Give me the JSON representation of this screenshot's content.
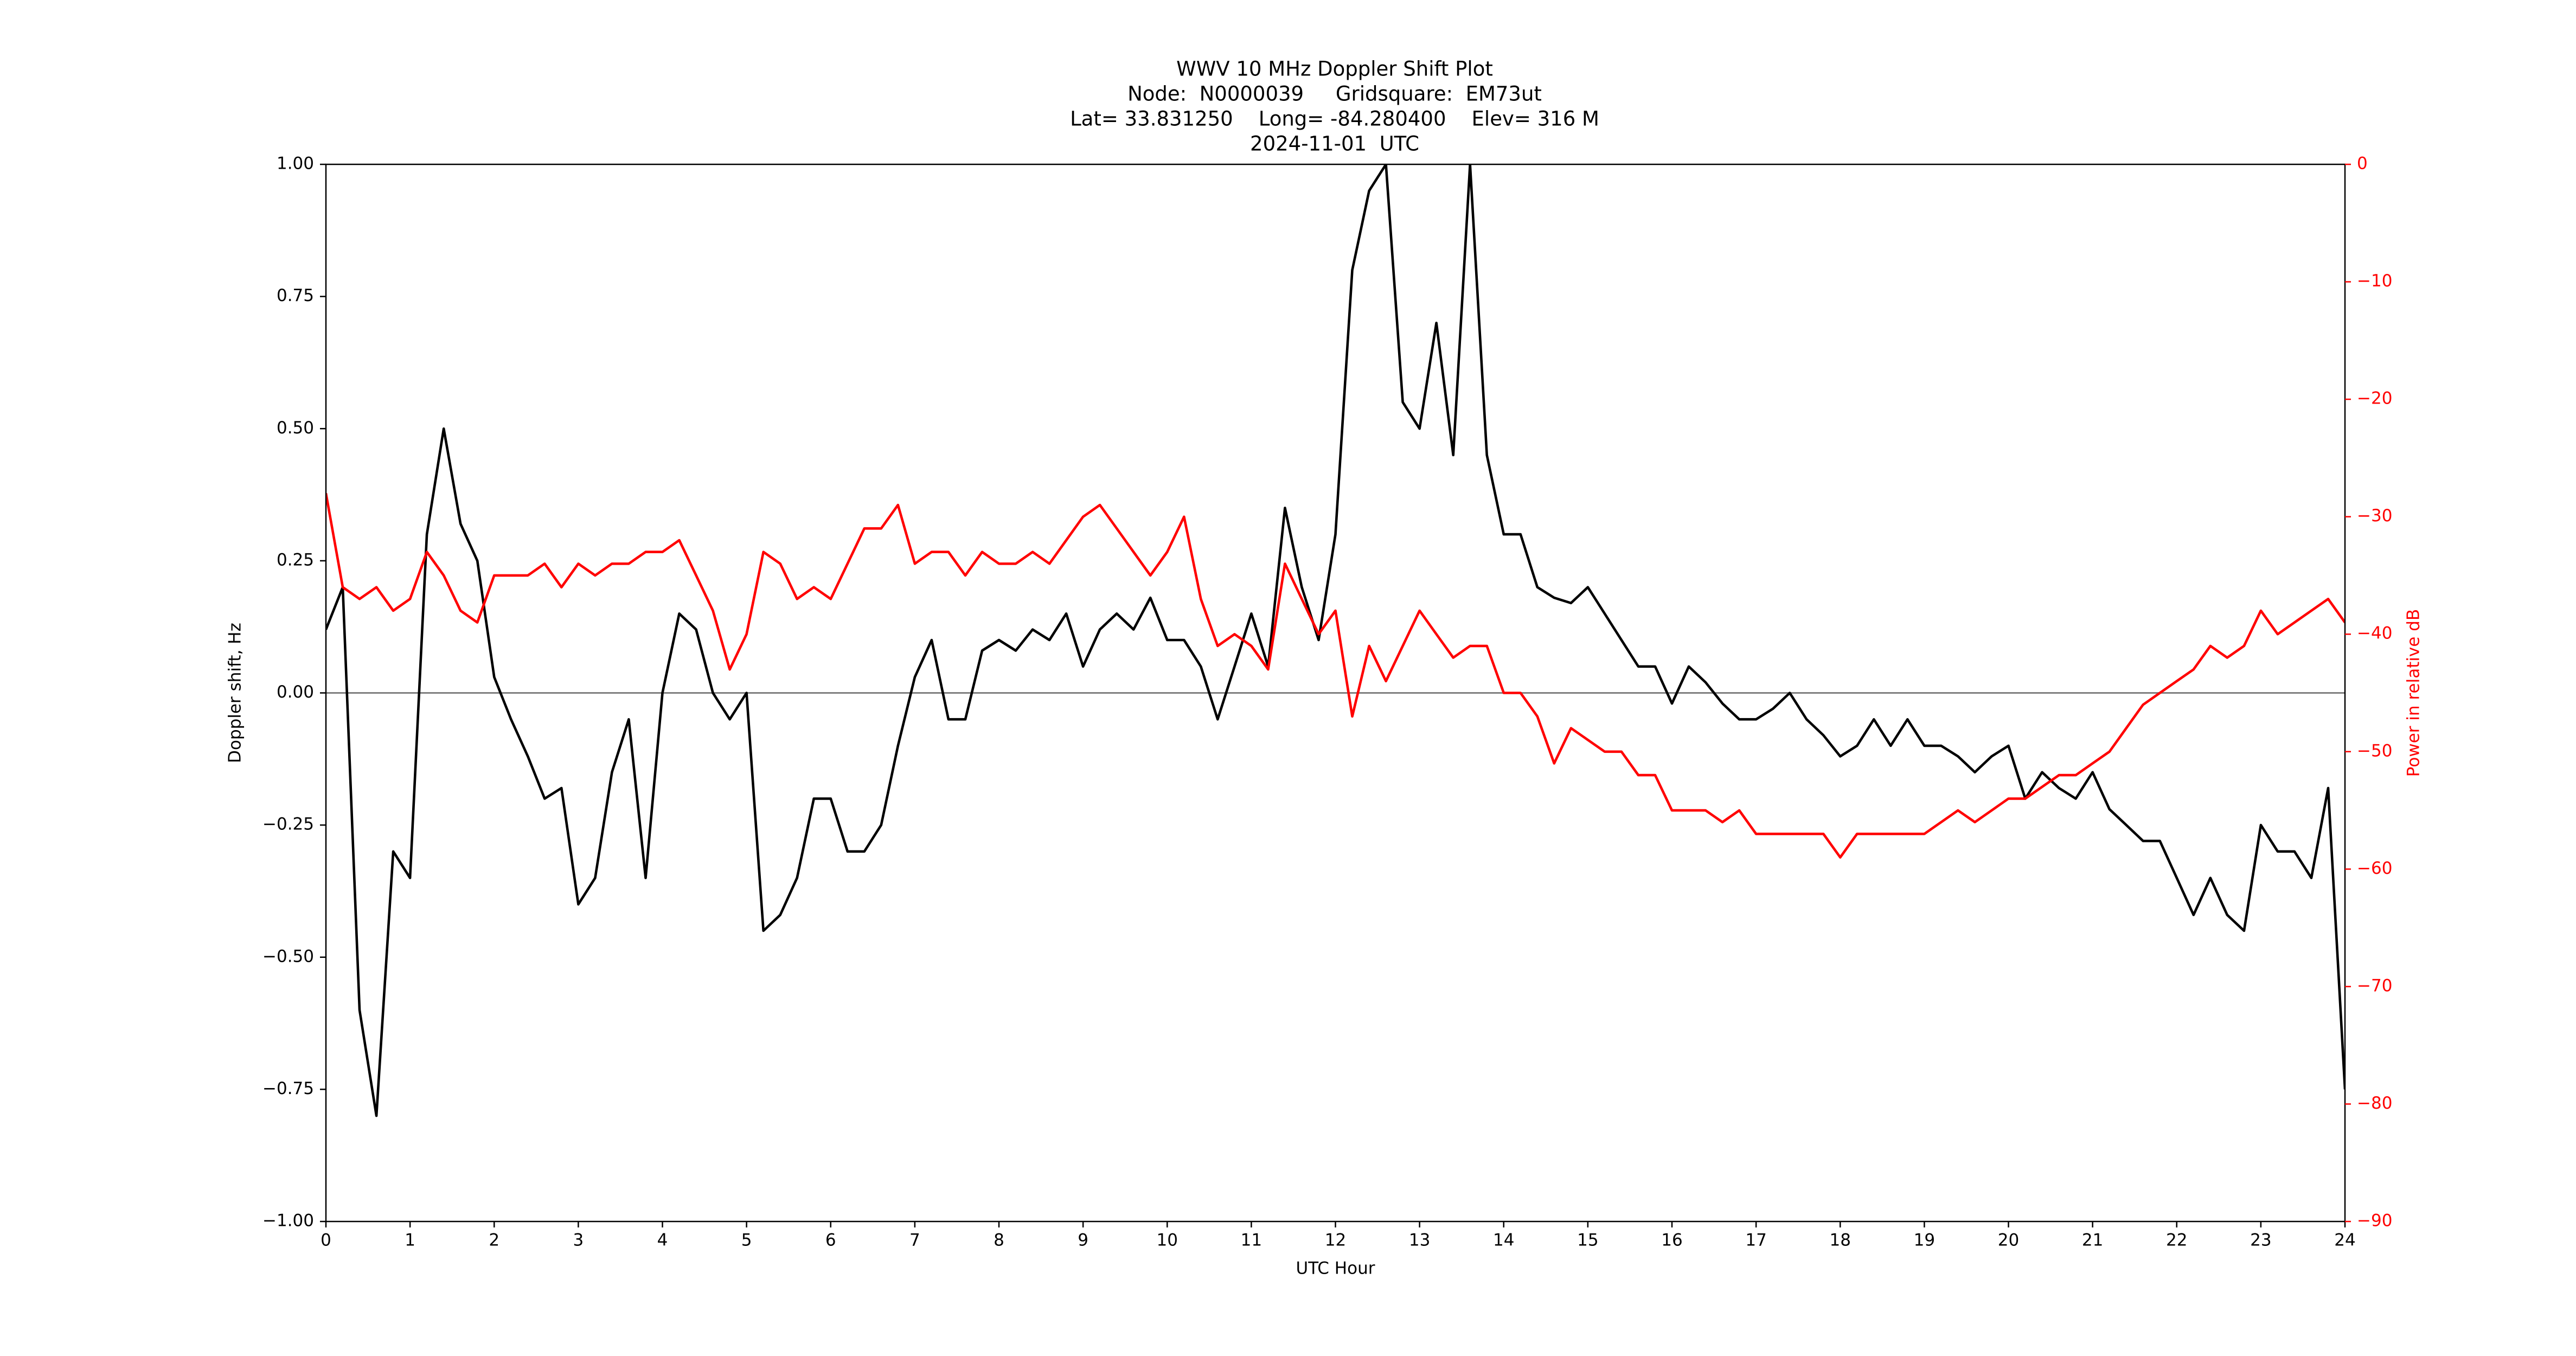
{
  "chart_data": {
    "type": "line",
    "title": [
      "WWV 10 MHz Doppler Shift Plot",
      "Node:  N0000039     Gridsquare:  EM73ut",
      "Lat= 33.831250    Long= -84.280400    Elev= 316 M",
      "2024-11-01  UTC"
    ],
    "x_label": "UTC Hour",
    "y_label": "Doppler shift, Hz",
    "y2_label": "Power in relative dB",
    "x": [
      0,
      0.2,
      0.4,
      0.6,
      0.8,
      1,
      1.2,
      1.4,
      1.6,
      1.8,
      2,
      2.2,
      2.4,
      2.6,
      2.8,
      3,
      3.2,
      3.4,
      3.6,
      3.8,
      4,
      4.2,
      4.4,
      4.6,
      4.8,
      5,
      5.2,
      5.4,
      5.6,
      5.8,
      6,
      6.2,
      6.4,
      6.6,
      6.8,
      7,
      7.2,
      7.4,
      7.6,
      7.8,
      8,
      8.2,
      8.4,
      8.6,
      8.8,
      9,
      9.2,
      9.4,
      9.6,
      9.8,
      10,
      10.2,
      10.4,
      10.6,
      10.8,
      11,
      11.2,
      11.4,
      11.6,
      11.8,
      12,
      12.2,
      12.4,
      12.6,
      12.8,
      13,
      13.2,
      13.4,
      13.6,
      13.8,
      14,
      14.2,
      14.4,
      14.6,
      14.8,
      15,
      15.2,
      15.4,
      15.6,
      15.8,
      16,
      16.2,
      16.4,
      16.6,
      16.8,
      17,
      17.2,
      17.4,
      17.6,
      17.8,
      18,
      18.2,
      18.4,
      18.6,
      18.8,
      19,
      19.2,
      19.4,
      19.6,
      19.8,
      20,
      20.2,
      20.4,
      20.6,
      20.8,
      21,
      21.2,
      21.4,
      21.6,
      21.8,
      22,
      22.2,
      22.4,
      22.6,
      22.8,
      23,
      23.2,
      23.4,
      23.6,
      23.8,
      24
    ],
    "series": [
      {
        "name": "Doppler shift",
        "color": "#000000",
        "values": [
          0.12,
          0.2,
          -0.6,
          -0.8,
          -0.3,
          -0.35,
          0.3,
          0.5,
          0.32,
          0.25,
          0.03,
          -0.05,
          -0.12,
          -0.2,
          -0.18,
          -0.4,
          -0.35,
          -0.15,
          -0.05,
          -0.35,
          0,
          0.15,
          0.12,
          0,
          -0.05,
          0,
          -0.45,
          -0.42,
          -0.35,
          -0.2,
          -0.2,
          -0.3,
          -0.3,
          -0.25,
          -0.1,
          0.03,
          0.1,
          -0.05,
          -0.05,
          0.08,
          0.1,
          0.08,
          0.12,
          0.1,
          0.15,
          0.05,
          0.12,
          0.15,
          0.12,
          0.18,
          0.1,
          0.1,
          0.05,
          -0.05,
          0.05,
          0.15,
          0.05,
          0.35,
          0.2,
          0.1,
          0.3,
          0.8,
          0.95,
          1,
          0.55,
          0.5,
          0.7,
          0.45,
          1,
          0.45,
          0.3,
          0.3,
          0.2,
          0.18,
          0.17,
          0.2,
          0.15,
          0.1,
          0.05,
          0.05,
          -0.02,
          0.05,
          0.02,
          -0.02,
          -0.05,
          -0.05,
          -0.03,
          0,
          -0.05,
          -0.08,
          -0.12,
          -0.1,
          -0.05,
          -0.1,
          -0.05,
          -0.1,
          -0.1,
          -0.12,
          -0.15,
          -0.12,
          -0.1,
          -0.2,
          -0.15,
          -0.18,
          -0.2,
          -0.15,
          -0.22,
          -0.25,
          -0.28,
          -0.28,
          -0.35,
          -0.42,
          -0.35,
          -0.42,
          -0.45,
          -0.25,
          -0.3,
          -0.3,
          -0.35,
          -0.18,
          -0.75
        ]
      },
      {
        "name": "Power",
        "color": "#ff0000",
        "axis": "y2",
        "values": [
          -28,
          -36,
          -37,
          -36,
          -38,
          -37,
          -33,
          -35,
          -38,
          -39,
          -35,
          -35,
          -35,
          -34,
          -36,
          -34,
          -35,
          -34,
          -34,
          -33,
          -33,
          -32,
          -35,
          -38,
          -43,
          -40,
          -33,
          -34,
          -37,
          -36,
          -37,
          -34,
          -31,
          -31,
          -29,
          -34,
          -33,
          -33,
          -35,
          -33,
          -34,
          -34,
          -33,
          -34,
          -32,
          -30,
          -29,
          -31,
          -33,
          -35,
          -33,
          -30,
          -37,
          -41,
          -40,
          -41,
          -43,
          -34,
          -37,
          -40,
          -38,
          -47,
          -41,
          -44,
          -41,
          -38,
          -40,
          -42,
          -41,
          -41,
          -45,
          -45,
          -47,
          -51,
          -48,
          -49,
          -50,
          -50,
          -52,
          -52,
          -55,
          -55,
          -55,
          -56,
          -55,
          -57,
          -57,
          -57,
          -57,
          -57,
          -59,
          -57,
          -57,
          -57,
          -57,
          -57,
          -56,
          -55,
          -56,
          -55,
          -54,
          -54,
          -53,
          -52,
          -52,
          -51,
          -50,
          -48,
          -46,
          -45,
          -44,
          -43,
          -41,
          -42,
          -41,
          -38,
          -40,
          -39,
          -38,
          -37,
          -39
        ]
      }
    ],
    "xlim": [
      0,
      24
    ],
    "xticks": [
      0,
      1,
      2,
      3,
      4,
      5,
      6,
      7,
      8,
      9,
      10,
      11,
      12,
      13,
      14,
      15,
      16,
      17,
      18,
      19,
      20,
      21,
      22,
      23,
      24
    ],
    "ylim": [
      -1,
      1
    ],
    "yticks": [
      {
        "value": -1,
        "label": "−1.00"
      },
      {
        "value": -0.75,
        "label": "−0.75"
      },
      {
        "value": -0.5,
        "label": "−0.50"
      },
      {
        "value": -0.25,
        "label": "−0.25"
      },
      {
        "value": 0,
        "label": "0.00"
      },
      {
        "value": 0.25,
        "label": "0.25"
      },
      {
        "value": 0.5,
        "label": "0.50"
      },
      {
        "value": 0.75,
        "label": "0.75"
      },
      {
        "value": 1,
        "label": "1.00"
      }
    ],
    "y2lim": [
      -90,
      0
    ],
    "y2ticks": [
      {
        "value": -90,
        "label": "−90"
      },
      {
        "value": -80,
        "label": "−80"
      },
      {
        "value": -70,
        "label": "−70"
      },
      {
        "value": -60,
        "label": "−60"
      },
      {
        "value": -50,
        "label": "−50"
      },
      {
        "value": -40,
        "label": "−40"
      },
      {
        "value": -30,
        "label": "−30"
      },
      {
        "value": -20,
        "label": "−20"
      },
      {
        "value": -10,
        "label": "−10"
      },
      0
    ],
    "y2_color": "#ff0000"
  }
}
